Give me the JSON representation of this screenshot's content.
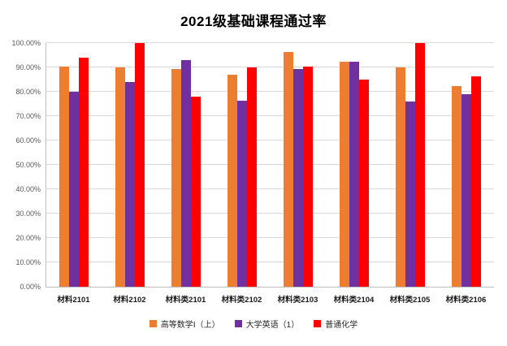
{
  "chart_data": {
    "type": "bar",
    "title": "2021级基础课程通过率",
    "categories": [
      "材料2101",
      "材料2102",
      "材料类2101",
      "材料类2102",
      "材料类2103",
      "材料类2104",
      "材料类2105",
      "材料类2106"
    ],
    "series": [
      {
        "name": "高等数学Ⅰ（上）",
        "color": "#ED7D31",
        "values": [
          90.5,
          90.0,
          89.5,
          87.0,
          96.5,
          92.5,
          90.0,
          82.5
        ]
      },
      {
        "name": "大学英语（1）",
        "color": "#7030A0",
        "values": [
          80.0,
          84.0,
          93.0,
          76.5,
          89.5,
          92.5,
          76.0,
          79.0
        ]
      },
      {
        "name": "普通化学",
        "color": "#FF0000",
        "values": [
          94.0,
          100.0,
          78.0,
          90.0,
          90.5,
          85.0,
          100.0,
          86.5
        ]
      }
    ],
    "xlabel": "",
    "ylabel": "",
    "ylim": [
      0,
      100
    ],
    "ytick_step": 10,
    "ytick_suffix": "%",
    "ytick_decimals": 2,
    "grid": true,
    "legend_position": "bottom"
  }
}
